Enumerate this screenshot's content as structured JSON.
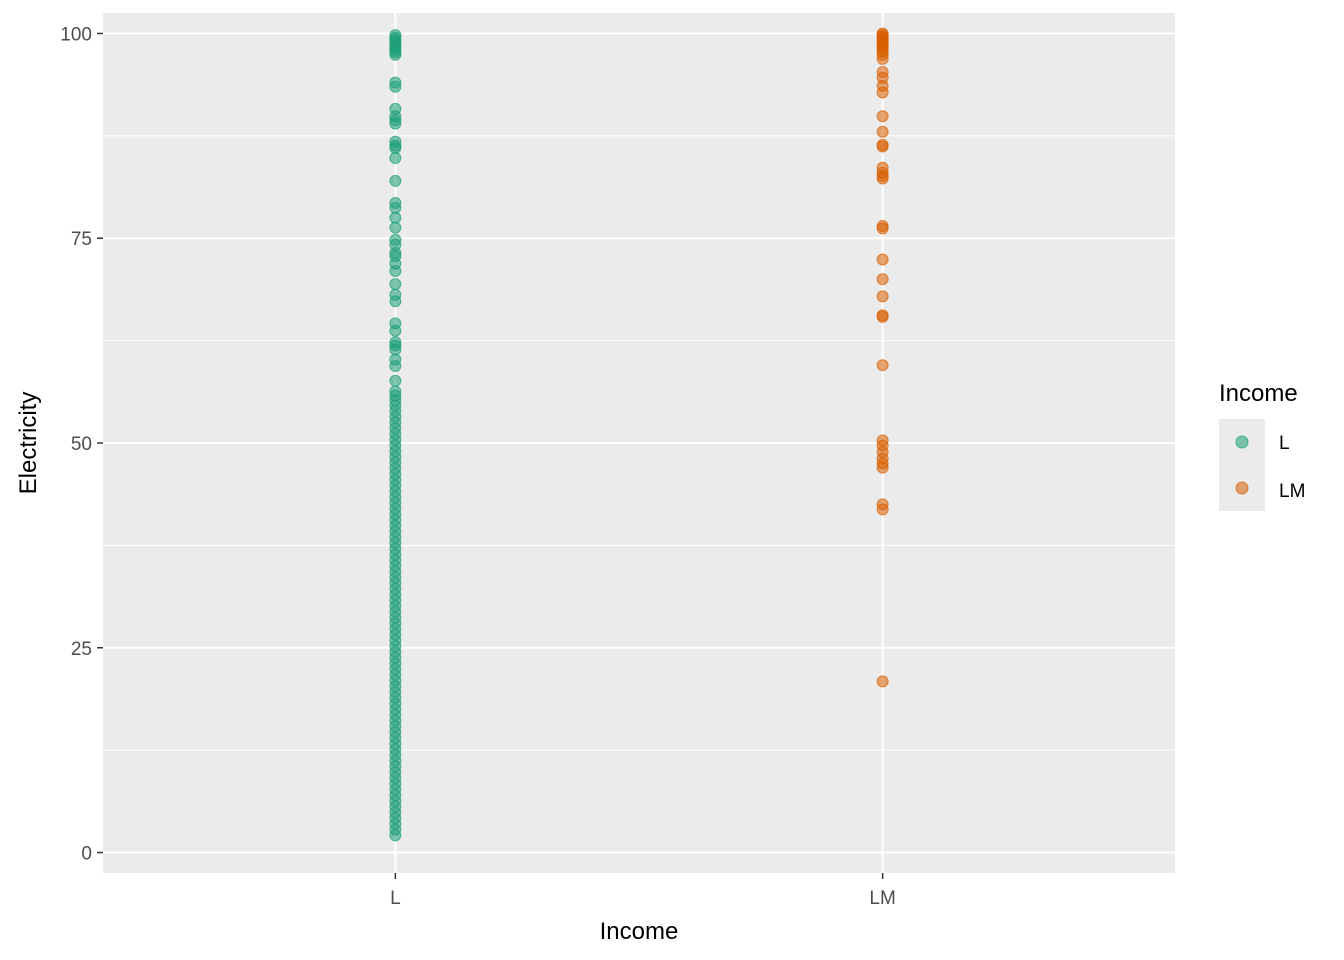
{
  "chart_data": {
    "type": "scatter",
    "xlabel": "Income",
    "ylabel": "Electricity",
    "categories": [
      "L",
      "LM"
    ],
    "ylim": [
      -2.5,
      102.5
    ],
    "yticks": [
      0,
      25,
      50,
      75,
      100
    ],
    "grid": true,
    "legend": {
      "title": "Income",
      "position": "right",
      "entries": [
        "L",
        "LM"
      ]
    },
    "colors": {
      "L": "#1b9e77",
      "LM": "#d95f02",
      "panel": "#ebebeb",
      "grid": "#ffffff"
    },
    "series": [
      {
        "name": "L",
        "x": "L",
        "values": [
          99.8,
          99.5,
          99.2,
          98.9,
          98.6,
          98.3,
          98.0,
          97.7,
          97.4,
          94.0,
          93.5,
          90.8,
          89.9,
          89.4,
          89.0,
          86.8,
          86.3,
          86.0,
          84.8,
          82.0,
          79.3,
          78.7,
          77.5,
          76.3,
          74.8,
          74.2,
          73.2,
          72.8,
          71.9,
          71.0,
          69.4,
          68.1,
          67.3,
          64.6,
          63.7,
          62.3,
          61.9,
          61.4,
          60.2,
          59.4,
          57.6,
          56.3,
          55.8,
          55.2,
          54.6,
          53.9,
          53.2,
          52.5,
          51.8,
          51.1,
          50.4,
          49.7,
          49.0,
          48.3,
          47.6,
          46.9,
          46.2,
          45.5,
          44.8,
          44.1,
          43.4,
          42.7,
          42.0,
          41.3,
          40.6,
          39.9,
          39.2,
          38.5,
          37.8,
          37.1,
          36.4,
          35.7,
          35.0,
          34.3,
          33.6,
          32.9,
          32.2,
          31.5,
          30.8,
          30.1,
          29.4,
          28.7,
          28.0,
          27.3,
          26.6,
          25.9,
          25.2,
          24.5,
          23.8,
          23.1,
          22.4,
          21.7,
          21.0,
          20.3,
          19.6,
          18.9,
          18.2,
          17.5,
          16.8,
          16.1,
          15.4,
          14.7,
          14.0,
          13.3,
          12.6,
          11.9,
          11.2,
          10.5,
          9.8,
          9.1,
          8.4,
          7.7,
          7.0,
          6.3,
          5.6,
          4.9,
          4.2,
          3.5,
          2.8,
          2.1
        ]
      },
      {
        "name": "LM",
        "x": "LM",
        "values": [
          100.0,
          99.8,
          99.6,
          99.4,
          99.2,
          99.0,
          98.8,
          98.6,
          98.4,
          98.1,
          97.8,
          97.4,
          96.9,
          95.3,
          94.6,
          93.6,
          92.8,
          89.9,
          88.0,
          86.4,
          86.2,
          83.6,
          83.0,
          82.6,
          82.3,
          76.5,
          76.2,
          72.4,
          70.0,
          67.9,
          65.6,
          65.4,
          59.5,
          50.3,
          49.7,
          48.9,
          48.1,
          47.5,
          47.0,
          42.5,
          41.9,
          20.9
        ]
      }
    ]
  }
}
